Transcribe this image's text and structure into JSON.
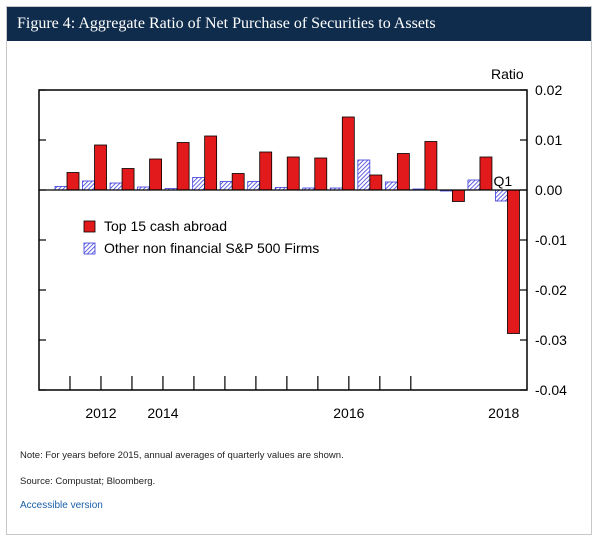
{
  "title": "Figure 4: Aggregate Ratio of Net Purchase of Securities to Assets",
  "chart_data": {
    "type": "bar",
    "title": "Figure 4: Aggregate Ratio of Net Purchase of Securities to Assets",
    "ylabel": "Ratio",
    "ylim": [
      -0.04,
      0.02
    ],
    "yticks": [
      "0.02",
      "0.01",
      "0.00",
      "-0.01",
      "-0.02",
      "-0.03",
      "-0.04"
    ],
    "ytick_values": [
      0.02,
      0.01,
      0.0,
      -0.01,
      -0.02,
      -0.03,
      -0.04
    ],
    "xlabels": [
      "2012",
      "2014",
      "2016",
      "2018"
    ],
    "xlabel_positions": [
      1.5,
      3.5,
      9.5,
      14.5
    ],
    "x_range": [
      -0.5,
      15.25
    ],
    "annotation": "Q1",
    "annotation_x": 15,
    "annotation_y": 0.001,
    "legend_location": "center-left",
    "series": [
      {
        "name": "Top 15 cash abroad",
        "color": "#e31a1c",
        "values": [
          0.0035,
          0.009,
          0.0043,
          0.0062,
          0.0095,
          0.0108,
          0.0033,
          0.0076,
          0.0066,
          0.0064,
          0.0146,
          0.003,
          0.0073,
          0.0097,
          -0.0023,
          0.0066,
          -0.0287
        ]
      },
      {
        "name": "Other non financial S&P 500 Firms",
        "color": "#3c3cdc",
        "values": [
          0.0007,
          0.0018,
          0.0014,
          0.0006,
          0.0003,
          0.0025,
          0.0017,
          0.0017,
          0.0005,
          0.0004,
          0.0004,
          0.006,
          0.0016,
          0.0002,
          -0.0002,
          0.002,
          -0.0022
        ]
      }
    ],
    "x": [
      0,
      1,
      2,
      3,
      4,
      4.67,
      5.33,
      6,
      6.67,
      7.33,
      8,
      8.67,
      9.33,
      10,
      10.67,
      11.33,
      12
    ]
  },
  "notes": {
    "note": "Note: For years before 2015, annual averages of quarterly values are shown.",
    "source": "Source: Compustat; Bloomberg."
  },
  "link_label": "Accessible version"
}
